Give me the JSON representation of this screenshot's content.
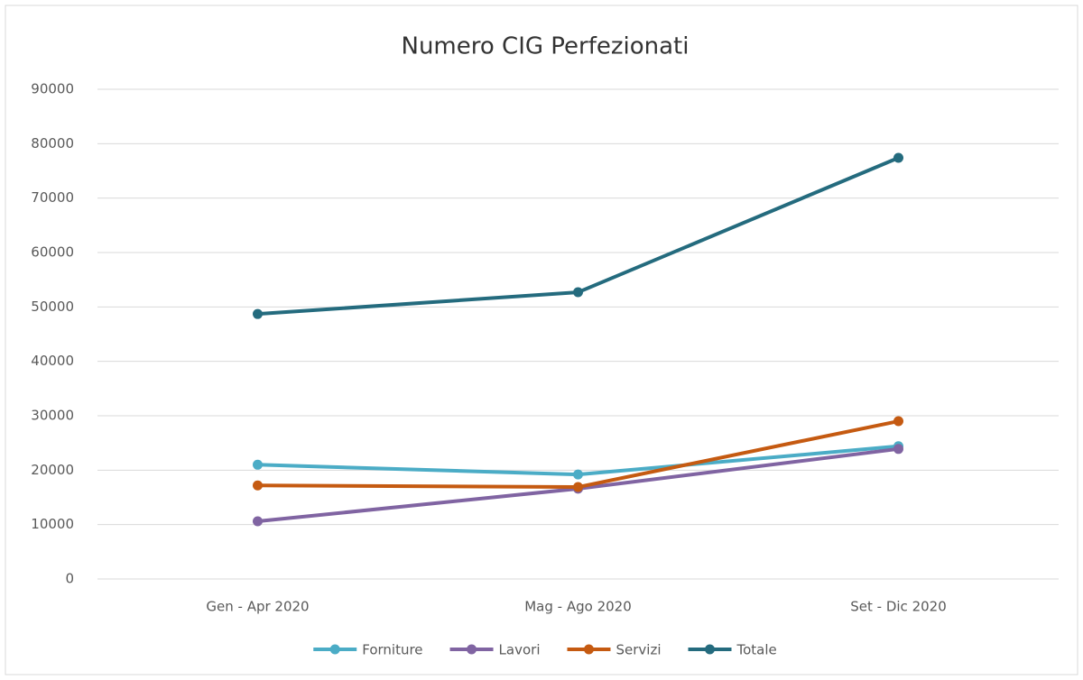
{
  "chart_data": {
    "type": "line",
    "title": "Numero CIG Perfezionati",
    "categories": [
      "Gen - Apr 2020",
      "Mag - Ago 2020",
      "Set - Dic 2020"
    ],
    "series": [
      {
        "name": "Forniture",
        "color": "#4bacc6",
        "values": [
          21000,
          19200,
          24400
        ]
      },
      {
        "name": "Lavori",
        "color": "#8064a2",
        "values": [
          10600,
          16600,
          23900
        ]
      },
      {
        "name": "Servizi",
        "color": "#c55a11",
        "values": [
          17200,
          16900,
          29000
        ]
      },
      {
        "name": "Totale",
        "color": "#246b7e",
        "values": [
          48700,
          52700,
          77400
        ]
      }
    ],
    "ylim": [
      0,
      90000
    ],
    "yticks": [
      0,
      10000,
      20000,
      30000,
      40000,
      50000,
      60000,
      70000,
      80000,
      90000
    ],
    "grid": true,
    "legend": "bottom"
  }
}
